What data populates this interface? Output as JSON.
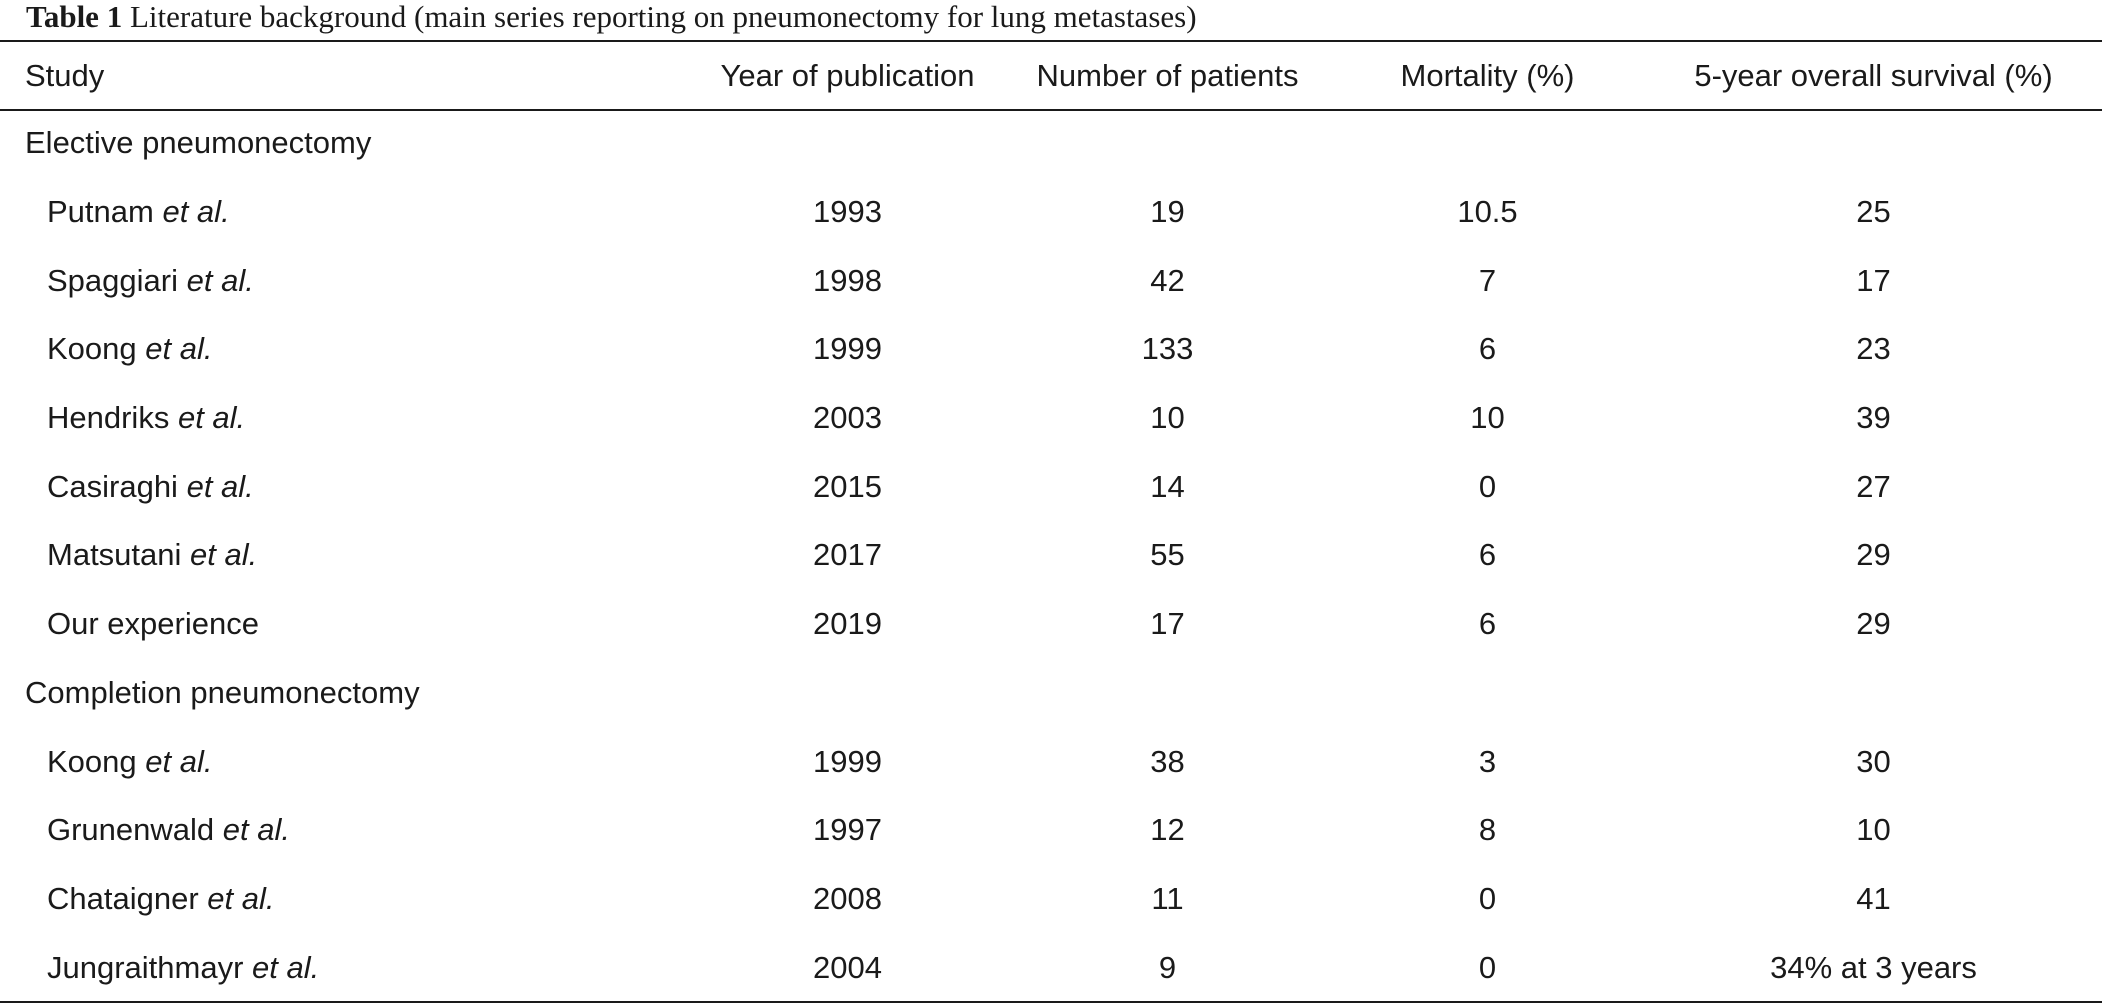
{
  "caption": {
    "label": "Table 1",
    "text": "Literature background (main series reporting on pneumonectomy for lung metastases)"
  },
  "table": {
    "headers": {
      "study": "Study",
      "year": "Year of publication",
      "patients": "Number of patients",
      "mortality": "Mortality (%)",
      "survival": "5-year overall survival (%)"
    },
    "et_al": "et al.",
    "groups": [
      {
        "label": "Elective pneumonectomy",
        "rows": [
          {
            "author": "Putnam",
            "et_al": true,
            "year": "1993",
            "patients": "19",
            "mortality": "10.5",
            "survival": "25"
          },
          {
            "author": "Spaggiari",
            "et_al": true,
            "year": "1998",
            "patients": "42",
            "mortality": "7",
            "survival": "17"
          },
          {
            "author": "Koong",
            "et_al": true,
            "year": "1999",
            "patients": "133",
            "mortality": "6",
            "survival": "23"
          },
          {
            "author": "Hendriks",
            "et_al": true,
            "year": "2003",
            "patients": "10",
            "mortality": "10",
            "survival": "39"
          },
          {
            "author": "Casiraghi",
            "et_al": true,
            "year": "2015",
            "patients": "14",
            "mortality": "0",
            "survival": "27"
          },
          {
            "author": "Matsutani",
            "et_al": true,
            "year": "2017",
            "patients": "55",
            "mortality": "6",
            "survival": "29"
          },
          {
            "author": "Our experience",
            "et_al": false,
            "year": "2019",
            "patients": "17",
            "mortality": "6",
            "survival": "29"
          }
        ]
      },
      {
        "label": "Completion pneumonectomy",
        "rows": [
          {
            "author": "Koong",
            "et_al": true,
            "year": "1999",
            "patients": "38",
            "mortality": "3",
            "survival": "30"
          },
          {
            "author": "Grunenwald",
            "et_al": true,
            "year": "1997",
            "patients": "12",
            "mortality": "8",
            "survival": "10"
          },
          {
            "author": "Chataigner",
            "et_al": true,
            "year": "2008",
            "patients": "11",
            "mortality": "0",
            "survival": "41"
          },
          {
            "author": "Jungraithmayr",
            "et_al": true,
            "year": "2004",
            "patients": "9",
            "mortality": "0",
            "survival": "34% at 3 years"
          }
        ]
      }
    ]
  }
}
